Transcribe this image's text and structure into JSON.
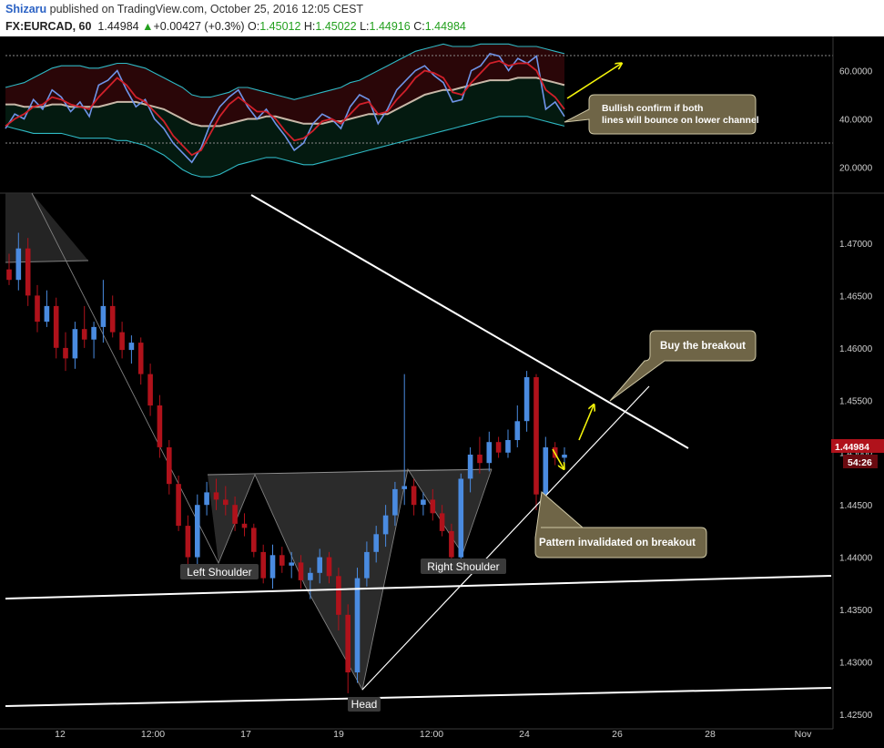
{
  "header": {
    "author": "Shizaru",
    "published_text": "published on TradingView.com, October 25, 2016 12:05 CEST",
    "symbol": "FX:EURCAD, 60",
    "last": "1.44984",
    "change_arrow": "▲",
    "change": "+0.00427 (+0.3%)",
    "o_label": "O:",
    "o_value": "1.45012",
    "h_label": "H:",
    "h_value": "1.45022",
    "l_label": "L:",
    "l_value": "1.44916",
    "c_label": "C:",
    "c_value": "1.44984"
  },
  "colors": {
    "background": "#000000",
    "up_candle": "#4a8be0",
    "down_candle": "#b0121b",
    "rsi_line": "#6f94e8",
    "rsi_signal": "#d0202a",
    "rsi_mid": "#c8b8a8",
    "band": "#2fb8c4",
    "annotation_fill": "#6f6547",
    "annotation_border": "#cfc8a6",
    "arrow": "#f4f40a",
    "price_label": "#b0121b"
  },
  "annotations": {
    "bullish": "Bullish confirm if both lines will bounce on lower channel",
    "buy_breakout": "Buy the breakout",
    "invalidated": "Pattern invalidated on breakout",
    "left_shoulder": "Left Shoulder",
    "head": "Head",
    "right_shoulder": "Right Shoulder"
  },
  "price_tag": {
    "value": "1.44984",
    "countdown": "54:26"
  },
  "chart_data": [
    {
      "type": "line",
      "panel": "oscillator",
      "y_ticks": [
        "60.0000",
        "40.0000",
        "20.0000"
      ],
      "ylim": [
        10,
        73
      ],
      "reference_levels": [
        66,
        31
      ],
      "x": [
        0,
        1,
        2,
        3,
        4,
        5,
        6,
        7,
        8,
        9,
        10,
        11,
        12,
        13,
        14,
        15,
        16,
        17,
        18,
        19,
        20,
        21,
        22,
        23,
        24,
        25,
        26,
        27,
        28,
        29,
        30,
        31,
        32,
        33,
        34,
        35,
        36,
        37,
        38,
        39,
        40,
        41,
        42,
        43,
        44,
        45,
        46,
        47,
        48,
        49,
        50,
        51,
        52,
        53,
        54,
        55,
        56,
        57,
        58,
        59,
        60
      ],
      "series": [
        {
          "role": "oscillator",
          "values": [
            36,
            42,
            40,
            48,
            44,
            52,
            49,
            43,
            47,
            41,
            54,
            56,
            60,
            52,
            45,
            48,
            40,
            36,
            30,
            26,
            22,
            28,
            38,
            45,
            49,
            52,
            45,
            40,
            44,
            38,
            33,
            27,
            30,
            38,
            42,
            40,
            36,
            45,
            50,
            48,
            38,
            44,
            52,
            56,
            60,
            62,
            58,
            55,
            47,
            48,
            60,
            62,
            67,
            66,
            60,
            65,
            63,
            66,
            44,
            47,
            41
          ]
        },
        {
          "role": "signal",
          "values": [
            37,
            40,
            42,
            45,
            46,
            49,
            48,
            46,
            45,
            44,
            49,
            53,
            57,
            54,
            49,
            47,
            43,
            39,
            33,
            29,
            25,
            27,
            34,
            41,
            46,
            49,
            46,
            43,
            43,
            40,
            35,
            31,
            32,
            35,
            39,
            40,
            38,
            42,
            46,
            47,
            42,
            43,
            48,
            52,
            57,
            60,
            59,
            57,
            51,
            50,
            55,
            59,
            63,
            64,
            62,
            63,
            63,
            60,
            52,
            49,
            44
          ]
        },
        {
          "role": "midline",
          "values": [
            46,
            46,
            45,
            45,
            45,
            46,
            46,
            45,
            45,
            45,
            45,
            46,
            47,
            47,
            47,
            46,
            45,
            44,
            42,
            40,
            38,
            37,
            37,
            37,
            38,
            39,
            40,
            40,
            41,
            41,
            40,
            39,
            38,
            38,
            38,
            39,
            39,
            40,
            41,
            42,
            42,
            42,
            44,
            46,
            48,
            50,
            51,
            52,
            52,
            53,
            54,
            55,
            56,
            56,
            56,
            57,
            57,
            57,
            56,
            55,
            54
          ]
        },
        {
          "role": "upper_band",
          "values": [
            53,
            54,
            55,
            57,
            59,
            61,
            62,
            62,
            62,
            61,
            61,
            62,
            63,
            63,
            62,
            61,
            59,
            57,
            55,
            53,
            50,
            49,
            49,
            50,
            51,
            53,
            53,
            52,
            51,
            50,
            49,
            48,
            49,
            50,
            51,
            52,
            53,
            55,
            56,
            58,
            60,
            62,
            64,
            66,
            68,
            69,
            70,
            71,
            70,
            70,
            70,
            71,
            71,
            71,
            71,
            70,
            70,
            70,
            69,
            68,
            67
          ]
        },
        {
          "role": "lower_band",
          "values": [
            37,
            36,
            35,
            34,
            34,
            34,
            34,
            33,
            32,
            32,
            32,
            32,
            31,
            31,
            30,
            29,
            27,
            25,
            22,
            19,
            17,
            16,
            16,
            17,
            19,
            21,
            22,
            23,
            24,
            24,
            23,
            22,
            21,
            21,
            22,
            23,
            24,
            25,
            26,
            27,
            28,
            29,
            30,
            31,
            32,
            33,
            34,
            35,
            36,
            37,
            38,
            39,
            40,
            41,
            41,
            41,
            41,
            40,
            39,
            38,
            37
          ]
        }
      ]
    },
    {
      "type": "candlestick",
      "panel": "price",
      "y_ticks": [
        "1.47000",
        "1.46500",
        "1.46000",
        "1.45500",
        "1.45000",
        "1.44500",
        "1.44000",
        "1.43500",
        "1.43000",
        "1.42500"
      ],
      "ylim": [
        1.4236,
        1.4747
      ],
      "x_ticks": [
        "12",
        "12:00",
        "17",
        "19",
        "12:00",
        "24",
        "26",
        "28",
        "Nov"
      ],
      "candles": [
        {
          "o": 1.4675,
          "h": 1.469,
          "l": 1.466,
          "c": 1.4665
        },
        {
          "o": 1.4665,
          "h": 1.471,
          "l": 1.4655,
          "c": 1.4695
        },
        {
          "o": 1.4695,
          "h": 1.4705,
          "l": 1.464,
          "c": 1.465
        },
        {
          "o": 1.465,
          "h": 1.466,
          "l": 1.4615,
          "c": 1.4625
        },
        {
          "o": 1.4625,
          "h": 1.4655,
          "l": 1.462,
          "c": 1.464
        },
        {
          "o": 1.464,
          "h": 1.4648,
          "l": 1.459,
          "c": 1.46
        },
        {
          "o": 1.46,
          "h": 1.4615,
          "l": 1.4578,
          "c": 1.459
        },
        {
          "o": 1.459,
          "h": 1.4625,
          "l": 1.458,
          "c": 1.4618
        },
        {
          "o": 1.4618,
          "h": 1.464,
          "l": 1.46,
          "c": 1.4608
        },
        {
          "o": 1.4608,
          "h": 1.4625,
          "l": 1.459,
          "c": 1.462
        },
        {
          "o": 1.462,
          "h": 1.4665,
          "l": 1.4605,
          "c": 1.464
        },
        {
          "o": 1.464,
          "h": 1.465,
          "l": 1.461,
          "c": 1.4615
        },
        {
          "o": 1.4615,
          "h": 1.4625,
          "l": 1.459,
          "c": 1.4598
        },
        {
          "o": 1.4598,
          "h": 1.4612,
          "l": 1.4585,
          "c": 1.4605
        },
        {
          "o": 1.4605,
          "h": 1.461,
          "l": 1.4565,
          "c": 1.4575
        },
        {
          "o": 1.4575,
          "h": 1.4585,
          "l": 1.4535,
          "c": 1.4545
        },
        {
          "o": 1.4545,
          "h": 1.4555,
          "l": 1.4495,
          "c": 1.4505
        },
        {
          "o": 1.4505,
          "h": 1.4512,
          "l": 1.446,
          "c": 1.447
        },
        {
          "o": 1.447,
          "h": 1.4478,
          "l": 1.4425,
          "c": 1.443
        },
        {
          "o": 1.443,
          "h": 1.444,
          "l": 1.439,
          "c": 1.44
        },
        {
          "o": 1.44,
          "h": 1.446,
          "l": 1.4392,
          "c": 1.445
        },
        {
          "o": 1.445,
          "h": 1.4472,
          "l": 1.444,
          "c": 1.4462
        },
        {
          "o": 1.4462,
          "h": 1.4475,
          "l": 1.4445,
          "c": 1.4455
        },
        {
          "o": 1.4455,
          "h": 1.4468,
          "l": 1.444,
          "c": 1.445
        },
        {
          "o": 1.445,
          "h": 1.4458,
          "l": 1.4425,
          "c": 1.4432
        },
        {
          "o": 1.4432,
          "h": 1.4442,
          "l": 1.442,
          "c": 1.4428
        },
        {
          "o": 1.4428,
          "h": 1.4432,
          "l": 1.44,
          "c": 1.4405
        },
        {
          "o": 1.4405,
          "h": 1.4412,
          "l": 1.4375,
          "c": 1.438
        },
        {
          "o": 1.438,
          "h": 1.4412,
          "l": 1.437,
          "c": 1.4402
        },
        {
          "o": 1.4402,
          "h": 1.441,
          "l": 1.4385,
          "c": 1.4392
        },
        {
          "o": 1.4392,
          "h": 1.4405,
          "l": 1.438,
          "c": 1.4395
        },
        {
          "o": 1.4395,
          "h": 1.4402,
          "l": 1.437,
          "c": 1.4378
        },
        {
          "o": 1.4378,
          "h": 1.439,
          "l": 1.436,
          "c": 1.4385
        },
        {
          "o": 1.4385,
          "h": 1.4408,
          "l": 1.4375,
          "c": 1.44
        },
        {
          "o": 1.44,
          "h": 1.4405,
          "l": 1.4375,
          "c": 1.4382
        },
        {
          "o": 1.4382,
          "h": 1.439,
          "l": 1.433,
          "c": 1.4345
        },
        {
          "o": 1.4345,
          "h": 1.4355,
          "l": 1.427,
          "c": 1.429
        },
        {
          "o": 1.429,
          "h": 1.439,
          "l": 1.428,
          "c": 1.438
        },
        {
          "o": 1.438,
          "h": 1.4415,
          "l": 1.4372,
          "c": 1.4405
        },
        {
          "o": 1.4405,
          "h": 1.443,
          "l": 1.4395,
          "c": 1.4422
        },
        {
          "o": 1.4422,
          "h": 1.445,
          "l": 1.441,
          "c": 1.444
        },
        {
          "o": 1.444,
          "h": 1.4472,
          "l": 1.443,
          "c": 1.4465
        },
        {
          "o": 1.4465,
          "h": 1.4575,
          "l": 1.445,
          "c": 1.4468
        },
        {
          "o": 1.4468,
          "h": 1.4475,
          "l": 1.444,
          "c": 1.445
        },
        {
          "o": 1.445,
          "h": 1.4462,
          "l": 1.444,
          "c": 1.4455
        },
        {
          "o": 1.4455,
          "h": 1.4465,
          "l": 1.4435,
          "c": 1.4442
        },
        {
          "o": 1.4442,
          "h": 1.445,
          "l": 1.442,
          "c": 1.4425
        },
        {
          "o": 1.4425,
          "h": 1.4432,
          "l": 1.4395,
          "c": 1.44
        },
        {
          "o": 1.44,
          "h": 1.448,
          "l": 1.4392,
          "c": 1.4475
        },
        {
          "o": 1.4475,
          "h": 1.4505,
          "l": 1.4462,
          "c": 1.4498
        },
        {
          "o": 1.4498,
          "h": 1.4515,
          "l": 1.448,
          "c": 1.449
        },
        {
          "o": 1.449,
          "h": 1.452,
          "l": 1.4482,
          "c": 1.451
        },
        {
          "o": 1.451,
          "h": 1.4515,
          "l": 1.4495,
          "c": 1.45
        },
        {
          "o": 1.45,
          "h": 1.4522,
          "l": 1.4495,
          "c": 1.4512
        },
        {
          "o": 1.4512,
          "h": 1.4545,
          "l": 1.4505,
          "c": 1.453
        },
        {
          "o": 1.453,
          "h": 1.4578,
          "l": 1.452,
          "c": 1.4572
        },
        {
          "o": 1.4572,
          "h": 1.4575,
          "l": 1.4445,
          "c": 1.446
        },
        {
          "o": 1.446,
          "h": 1.4515,
          "l": 1.4448,
          "c": 1.4505
        },
        {
          "o": 1.4505,
          "h": 1.451,
          "l": 1.4488,
          "c": 1.4495
        },
        {
          "o": 1.4495,
          "h": 1.4505,
          "l": 1.4485,
          "c": 1.4498
        }
      ]
    }
  ]
}
